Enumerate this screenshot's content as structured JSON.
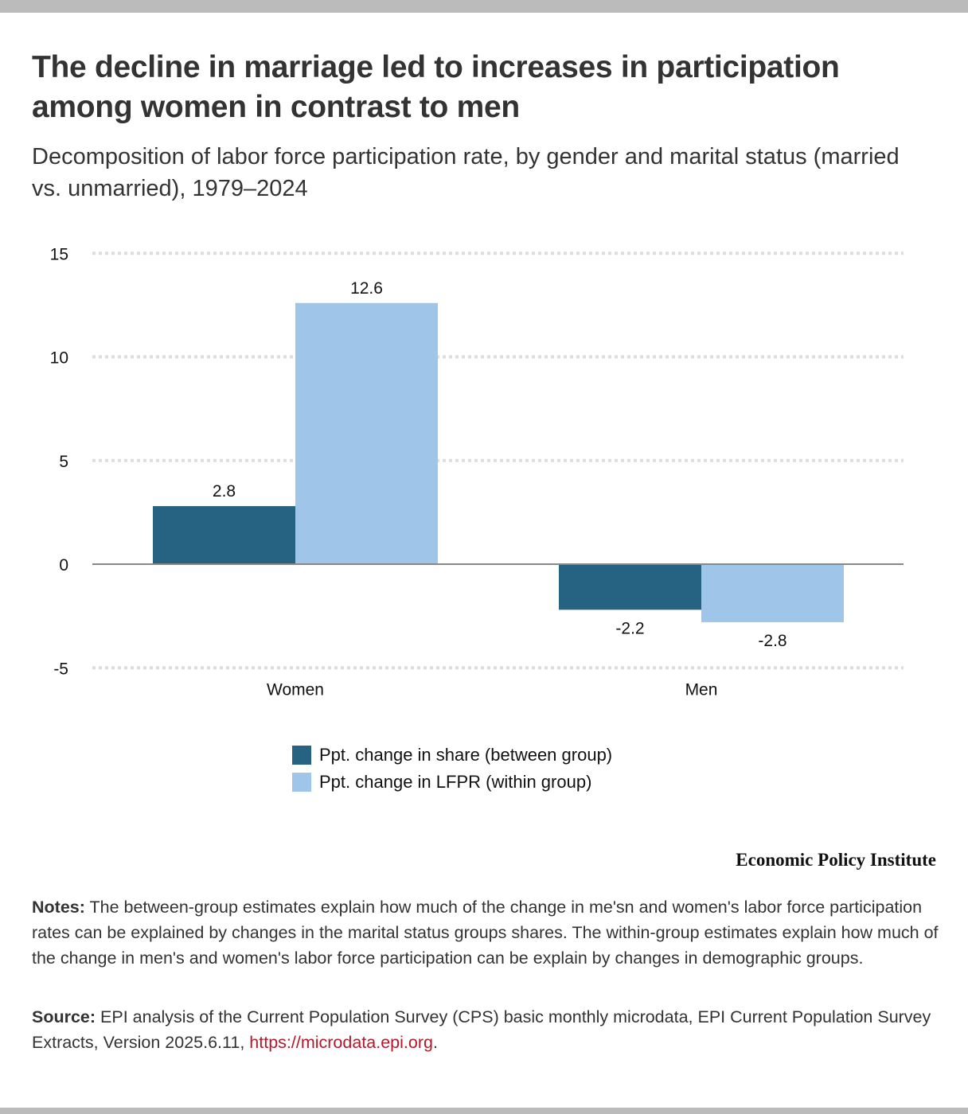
{
  "header": {
    "title": "The decline in marriage led to increases in participation among women in contrast to men",
    "subtitle": "Decomposition of labor force participation rate, by gender and marital status (married vs. unmarried), 1979–2024"
  },
  "chart_data": {
    "type": "bar",
    "title": "The decline in marriage led to increases in participation among women in contrast to men",
    "subtitle": "Decomposition of labor force participation rate, by gender and marital status (married vs. unmarried), 1979–2024",
    "xlabel": "",
    "ylabel": "",
    "categories": [
      "Women",
      "Men"
    ],
    "series": [
      {
        "name": "Ppt. change in share (between group)",
        "color": "#266383",
        "values": [
          2.8,
          -2.2
        ],
        "labels": [
          "2.8",
          "-2.2"
        ]
      },
      {
        "name": "Ppt. change in LFPR (within group)",
        "color": "#9fc5e8",
        "values": [
          12.6,
          -2.8
        ],
        "labels": [
          "12.6",
          "-2.8"
        ]
      }
    ],
    "ylim": [
      -5,
      15
    ],
    "yticks": [
      15,
      10,
      5,
      0,
      -5
    ],
    "ytick_labels": [
      "15",
      "10",
      "5",
      "0",
      "-5"
    ],
    "grid": true,
    "legend_position": "bottom-center"
  },
  "brand": "Economic Policy Institute",
  "notes": {
    "label": "Notes:",
    "text": " The between-group estimates explain how much of the change in me'sn and women's labor force participation rates can be explained by changes in the marital status groups shares. The within-group estimates explain how much of the change in men's and women's labor force participation can be explain by changes in demographic groups."
  },
  "source": {
    "label": "Source:",
    "text": " EPI analysis of the Current Population Survey (CPS) basic monthly microdata, EPI Current Population Survey Extracts, Version 2025.6.11, ",
    "link": "https://microdata.epi.org",
    "trailing": "."
  }
}
